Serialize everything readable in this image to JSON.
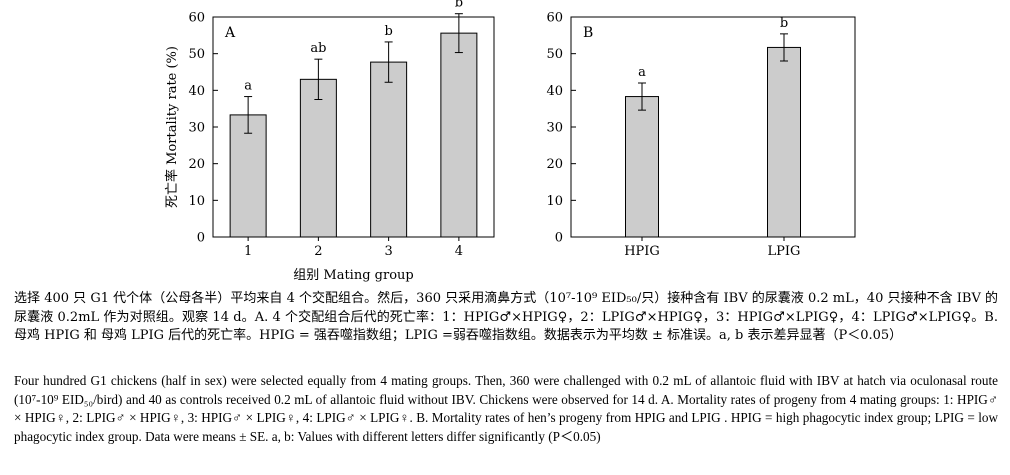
{
  "chart_data": [
    {
      "type": "bar",
      "panel_label": "A",
      "categories": [
        "1",
        "2",
        "3",
        "4"
      ],
      "values": [
        33.3,
        43.0,
        47.7,
        55.6
      ],
      "errors": [
        5.0,
        5.5,
        5.5,
        5.3
      ],
      "significance": [
        "a",
        "ab",
        "b",
        "b"
      ],
      "ylabel": "死亡率 Mortality rate (%)",
      "xlabel": "组别 Mating group",
      "ylim": [
        0,
        60
      ],
      "yticks": [
        "0",
        "10",
        "20",
        "30",
        "40",
        "50",
        "60"
      ],
      "bar_color": "#cccccc",
      "grid": false
    },
    {
      "type": "bar",
      "panel_label": "B",
      "categories": [
        "HPIG",
        "LPIG"
      ],
      "values": [
        38.3,
        51.7
      ],
      "errors": [
        3.7,
        3.7
      ],
      "significance": [
        "a",
        "b"
      ],
      "ylabel": "",
      "xlabel": "",
      "ylim": [
        0,
        60
      ],
      "yticks": [
        "0",
        "10",
        "20",
        "30",
        "40",
        "50",
        "60"
      ],
      "bar_color": "#cccccc",
      "grid": false
    }
  ],
  "caption_zh": "选择 400 只 G1 代个体（公母各半）平均来自 4 个交配组合。然后，360 只采用滴鼻方式（10⁷-10⁹ EID₅₀/只）接种含有 IBV 的尿囊液 0.2 mL，40 只接种不含 IBV 的尿囊液 0.2mL 作为对照组。观察 14 d。A. 4 个交配组合后代的死亡率：1：HPIG♂×HPIG♀，2：LPIG♂×HPIG♀，3：HPIG♂×LPIG♀，4：LPIG♂×LPIG♀。B. 母鸡 HPIG 和 母鸡 LPIG 后代的死亡率。HPIG = 强吞噬指数组；LPIG =弱吞噬指数组。数据表示为平均数 ± 标准误。a, b 表示差异显著（P＜0.05）",
  "caption_en": "Four hundred G1 chickens (half in sex) were selected equally from 4 mating groups. Then, 360 were challenged with 0.2 mL of allantoic fluid with IBV at hatch via oculonasal route (10⁷-10⁹ EID₅₀/bird) and 40 as controls received 0.2 mL of allantoic fluid without IBV. Chickens were observed for 14 d. A. Mortality rates of progeny from 4 mating groups: 1: HPIG♂ × HPIG♀, 2: LPIG♂ × HPIG♀, 3: HPIG♂ × LPIG♀, 4: LPIG♂ × LPIG♀. B. Mortality rates of hen’s progeny from HPIG and LPIG . HPIG = high phagocytic index group; LPIG = low phagocytic index group. Data were means ± SE. a, b: Values with different letters differ significantly (P＜0.05)"
}
